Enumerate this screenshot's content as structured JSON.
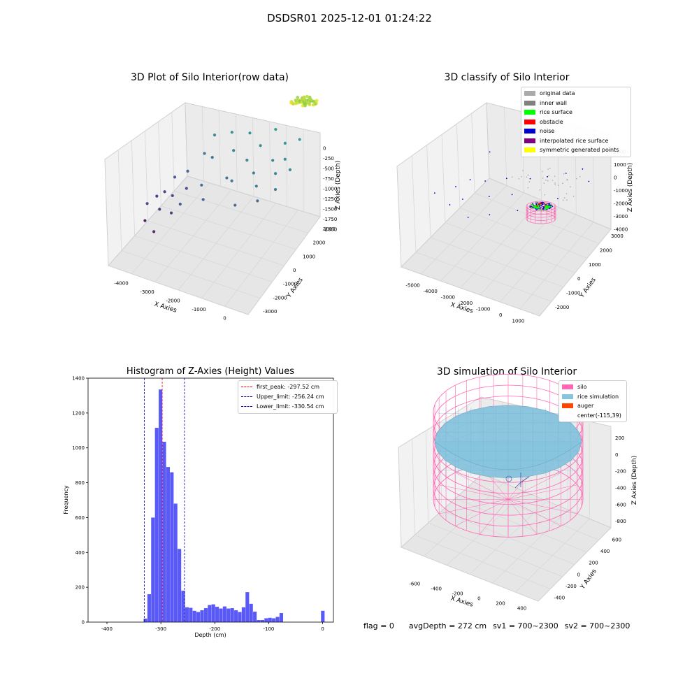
{
  "figure": {
    "suptitle": "DSDSR01 2025-12-01 01:24:22",
    "status": {
      "flag": "flag = 0",
      "avg_depth": "avgDepth = 272 cm",
      "sv1": "sv1 = 700~2300",
      "sv2": "sv2 = 700~2300"
    }
  },
  "colors": {
    "hist_bar": "#5050f8",
    "peak_line": "#ff0000",
    "limit_line": "#0000aa",
    "original": "#aaaaaa",
    "inner_wall": "#808080",
    "rice_surface": "#00ff00",
    "obstacle": "#ff0000",
    "noise": "#0000cc",
    "interpolated": "#800080",
    "symmetric": "#ffff00",
    "silo": "#ff69b4",
    "rice_sim": "#87c4de",
    "auger": "#ff4500"
  },
  "chart_data": [
    {
      "type": "scatter",
      "title": "3D Plot of Silo Interior(row data)",
      "xlabel": "X Axies",
      "ylabel": "Y Axies",
      "zlabel": "Z Axies (Depth)",
      "x_ticks": [
        "-4000",
        "-3000",
        "-2000",
        "-1000",
        "0"
      ],
      "y_ticks": [
        "-3000",
        "-2000",
        "-1000",
        "0",
        "1000",
        "2000",
        "3000"
      ],
      "z_ticks": [
        "-2000",
        "-1750",
        "-1500",
        "-1250",
        "-1000",
        "-750",
        "-500",
        "-250",
        "0"
      ],
      "xlim": [
        -4500,
        500
      ],
      "ylim": [
        -3500,
        3500
      ],
      "zlim": [
        -2100,
        100
      ],
      "points": [
        {
          "x": -4400,
          "y": -500,
          "z": -2000
        },
        {
          "x": -4300,
          "y": 300,
          "z": -1800
        },
        {
          "x": -4200,
          "y": -800,
          "z": -1700
        },
        {
          "x": -4100,
          "y": 500,
          "z": -1750
        },
        {
          "x": -4000,
          "y": -200,
          "z": -1850
        },
        {
          "x": -3900,
          "y": 900,
          "z": -1600
        },
        {
          "x": -3800,
          "y": -1200,
          "z": -1950
        },
        {
          "x": -3700,
          "y": 200,
          "z": -1700
        },
        {
          "x": -3600,
          "y": 1300,
          "z": -1550
        },
        {
          "x": -3500,
          "y": -400,
          "z": -1800
        },
        {
          "x": -3400,
          "y": 700,
          "z": -1650
        },
        {
          "x": -3200,
          "y": 1800,
          "z": -1350
        },
        {
          "x": -3100,
          "y": -600,
          "z": -1600
        },
        {
          "x": -3000,
          "y": 2200,
          "z": -1150
        },
        {
          "x": -2800,
          "y": 1500,
          "z": -1300
        },
        {
          "x": -2700,
          "y": 300,
          "z": -1450
        },
        {
          "x": -2500,
          "y": 2500,
          "z": -1100
        },
        {
          "x": -2400,
          "y": -300,
          "z": -1500
        },
        {
          "x": -2200,
          "y": 1900,
          "z": -1200
        },
        {
          "x": -2000,
          "y": 800,
          "z": -1350
        },
        {
          "x": -1900,
          "y": 2600,
          "z": -1050
        },
        {
          "x": -1700,
          "y": 500,
          "z": -1300
        },
        {
          "x": -1600,
          "y": 1600,
          "z": -1200
        },
        {
          "x": -1400,
          "y": 2300,
          "z": -1100
        },
        {
          "x": -1300,
          "y": -200,
          "z": -1450
        },
        {
          "x": -1200,
          "y": 1200,
          "z": -1250
        },
        {
          "x": -1100,
          "y": 2900,
          "z": -950
        },
        {
          "x": -900,
          "y": 700,
          "z": -1300
        },
        {
          "x": -800,
          "y": 1900,
          "z": -1150
        },
        {
          "x": -700,
          "y": 300,
          "z": -1400
        },
        {
          "x": -600,
          "y": 2500,
          "z": -1000
        },
        {
          "x": -500,
          "y": 1400,
          "z": -1200
        },
        {
          "x": -400,
          "y": 2000,
          "z": -1100
        },
        {
          "x": -300,
          "y": 900,
          "z": -1300
        },
        {
          "x": -200,
          "y": 2800,
          "z": -950
        },
        {
          "x": -100,
          "y": 1700,
          "z": -1150
        }
      ],
      "cluster": {
        "x": 200,
        "y": 2200,
        "z": -300,
        "count": 80,
        "spread": 350
      }
    },
    {
      "type": "scatter",
      "title": "3D classify of Silo Interior",
      "xlabel": "X Axies",
      "ylabel": "Y Axies",
      "zlabel": "Z Axies (Depth)",
      "x_ticks": [
        "-5000",
        "-4000",
        "-3000",
        "-2000",
        "-1000",
        "0",
        "1000"
      ],
      "y_ticks": [
        "-2000",
        "-1000",
        "0",
        "1000",
        "2000",
        "3000"
      ],
      "z_ticks": [
        "-4000",
        "-3000",
        "-2000",
        "-1000",
        "0",
        "1000",
        "2000"
      ],
      "xlim": [
        -5200,
        1300
      ],
      "ylim": [
        -2500,
        3500
      ],
      "zlim": [
        -4200,
        2200
      ],
      "legend": [
        {
          "label": "original data",
          "color": "#aaaaaa"
        },
        {
          "label": "inner wall",
          "color": "#808080"
        },
        {
          "label": "rice surface",
          "color": "#00ff00"
        },
        {
          "label": "obstacle",
          "color": "#ff0000"
        },
        {
          "label": "noise",
          "color": "#0000cc"
        },
        {
          "label": "interpolated rice surface",
          "color": "#800080"
        },
        {
          "label": "symmetric generated points",
          "color": "#ffff00"
        }
      ],
      "noise_points": [
        {
          "x": -4800,
          "y": -800,
          "z": -1700
        },
        {
          "x": -4500,
          "y": 200,
          "z": -2000
        },
        {
          "x": -4300,
          "y": -500,
          "z": -2300
        },
        {
          "x": -4100,
          "y": 600,
          "z": -1800
        },
        {
          "x": -3900,
          "y": -200,
          "z": -2100
        },
        {
          "x": -3600,
          "y": 900,
          "z": -1900
        },
        {
          "x": -3300,
          "y": -700,
          "z": -2400
        },
        {
          "x": -3000,
          "y": 300,
          "z": -2000
        },
        {
          "x": -2800,
          "y": 1200,
          "z": -1700
        },
        {
          "x": -2500,
          "y": -400,
          "z": -2200
        },
        {
          "x": -2200,
          "y": 700,
          "z": -1900
        },
        {
          "x": -1900,
          "y": 1500,
          "z": -1600
        },
        {
          "x": -1600,
          "y": 200,
          "z": -2100
        },
        {
          "x": -1300,
          "y": 1800,
          "z": -1500
        },
        {
          "x": -1000,
          "y": 600,
          "z": -2000
        },
        {
          "x": -700,
          "y": 2200,
          "z": -1400
        },
        {
          "x": -400,
          "y": 1200,
          "z": -1800
        },
        {
          "x": -200,
          "y": 2600,
          "z": -1300
        },
        {
          "x": -3800,
          "y": 1500,
          "z": -1000
        },
        {
          "x": -2000,
          "y": 2400,
          "z": -900
        },
        {
          "x": -1100,
          "y": 2900,
          "z": -700
        },
        {
          "x": 300,
          "y": 2300,
          "z": -1500
        }
      ],
      "silo_center": {
        "x": 200,
        "y": 2300,
        "z": -2200
      },
      "silo_radius": 600
    },
    {
      "type": "bar",
      "title": "Histogram of Z-Axies (Height) Values",
      "xlabel": "Depth (cm)",
      "ylabel": "Frequency",
      "xlim": [
        -435,
        20
      ],
      "ylim": [
        0,
        1400
      ],
      "x_ticks": [
        -400,
        -300,
        -200,
        -100,
        0
      ],
      "y_ticks": [
        0,
        200,
        400,
        600,
        800,
        1000,
        1200,
        1400
      ],
      "bin_width": 6.9,
      "bins": [
        {
          "x": -332,
          "value": 20
        },
        {
          "x": -325,
          "value": 160
        },
        {
          "x": -318,
          "value": 600
        },
        {
          "x": -311,
          "value": 1115
        },
        {
          "x": -304,
          "value": 1335
        },
        {
          "x": -297,
          "value": 1035
        },
        {
          "x": -290,
          "value": 890
        },
        {
          "x": -283,
          "value": 860
        },
        {
          "x": -276,
          "value": 680
        },
        {
          "x": -269,
          "value": 420
        },
        {
          "x": -262,
          "value": 180
        },
        {
          "x": -255,
          "value": 85
        },
        {
          "x": -248,
          "value": 82
        },
        {
          "x": -241,
          "value": 65
        },
        {
          "x": -234,
          "value": 58
        },
        {
          "x": -227,
          "value": 68
        },
        {
          "x": -220,
          "value": 80
        },
        {
          "x": -213,
          "value": 98
        },
        {
          "x": -206,
          "value": 102
        },
        {
          "x": -199,
          "value": 88
        },
        {
          "x": -192,
          "value": 78
        },
        {
          "x": -185,
          "value": 90
        },
        {
          "x": -178,
          "value": 78
        },
        {
          "x": -171,
          "value": 80
        },
        {
          "x": -164,
          "value": 68
        },
        {
          "x": -157,
          "value": 58
        },
        {
          "x": -150,
          "value": 85
        },
        {
          "x": -143,
          "value": 172
        },
        {
          "x": -136,
          "value": 105
        },
        {
          "x": -129,
          "value": 60
        },
        {
          "x": -122,
          "value": 12
        },
        {
          "x": -115,
          "value": 12
        },
        {
          "x": -108,
          "value": 22
        },
        {
          "x": -101,
          "value": 25
        },
        {
          "x": -94,
          "value": 22
        },
        {
          "x": -87,
          "value": 30
        },
        {
          "x": -80,
          "value": 52
        },
        {
          "x": -3,
          "value": 65
        }
      ],
      "lines": [
        {
          "label": "first_peak: -297.52 cm",
          "x": -297.52,
          "color": "#ff0000"
        },
        {
          "label": "Upper_limit: -256.24 cm",
          "x": -256.24,
          "color": "#0000aa"
        },
        {
          "label": "Lower_limit: -330.54 cm",
          "x": -330.54,
          "color": "#0000aa"
        }
      ]
    },
    {
      "type": "area",
      "title": "3D simulation of Silo Interior",
      "xlabel": "X Axies",
      "ylabel": "Y Axies",
      "zlabel": "Z Axies (Depth)",
      "x_ticks": [
        "-600",
        "-400",
        "-200",
        "0",
        "200",
        "400"
      ],
      "y_ticks": [
        "-400",
        "-200",
        "0",
        "200",
        "400",
        "600"
      ],
      "z_ticks": [
        "-800",
        "-600",
        "-400",
        "-200",
        "0",
        "200"
      ],
      "xlim": [
        -700,
        500
      ],
      "ylim": [
        -500,
        700
      ],
      "zlim": [
        -850,
        300
      ],
      "legend": [
        {
          "label": "silo",
          "color": "#ff69b4"
        },
        {
          "label": "rice simulation",
          "color": "#87c4de"
        },
        {
          "label": "auger",
          "color": "#ff4500"
        },
        {
          "label": "center(-115,39)",
          "color": ""
        }
      ],
      "center": {
        "x": -115,
        "y": 39
      },
      "silo_radius": 560,
      "silo_top": 0,
      "silo_bottom": -800,
      "rice_level": -272
    }
  ]
}
